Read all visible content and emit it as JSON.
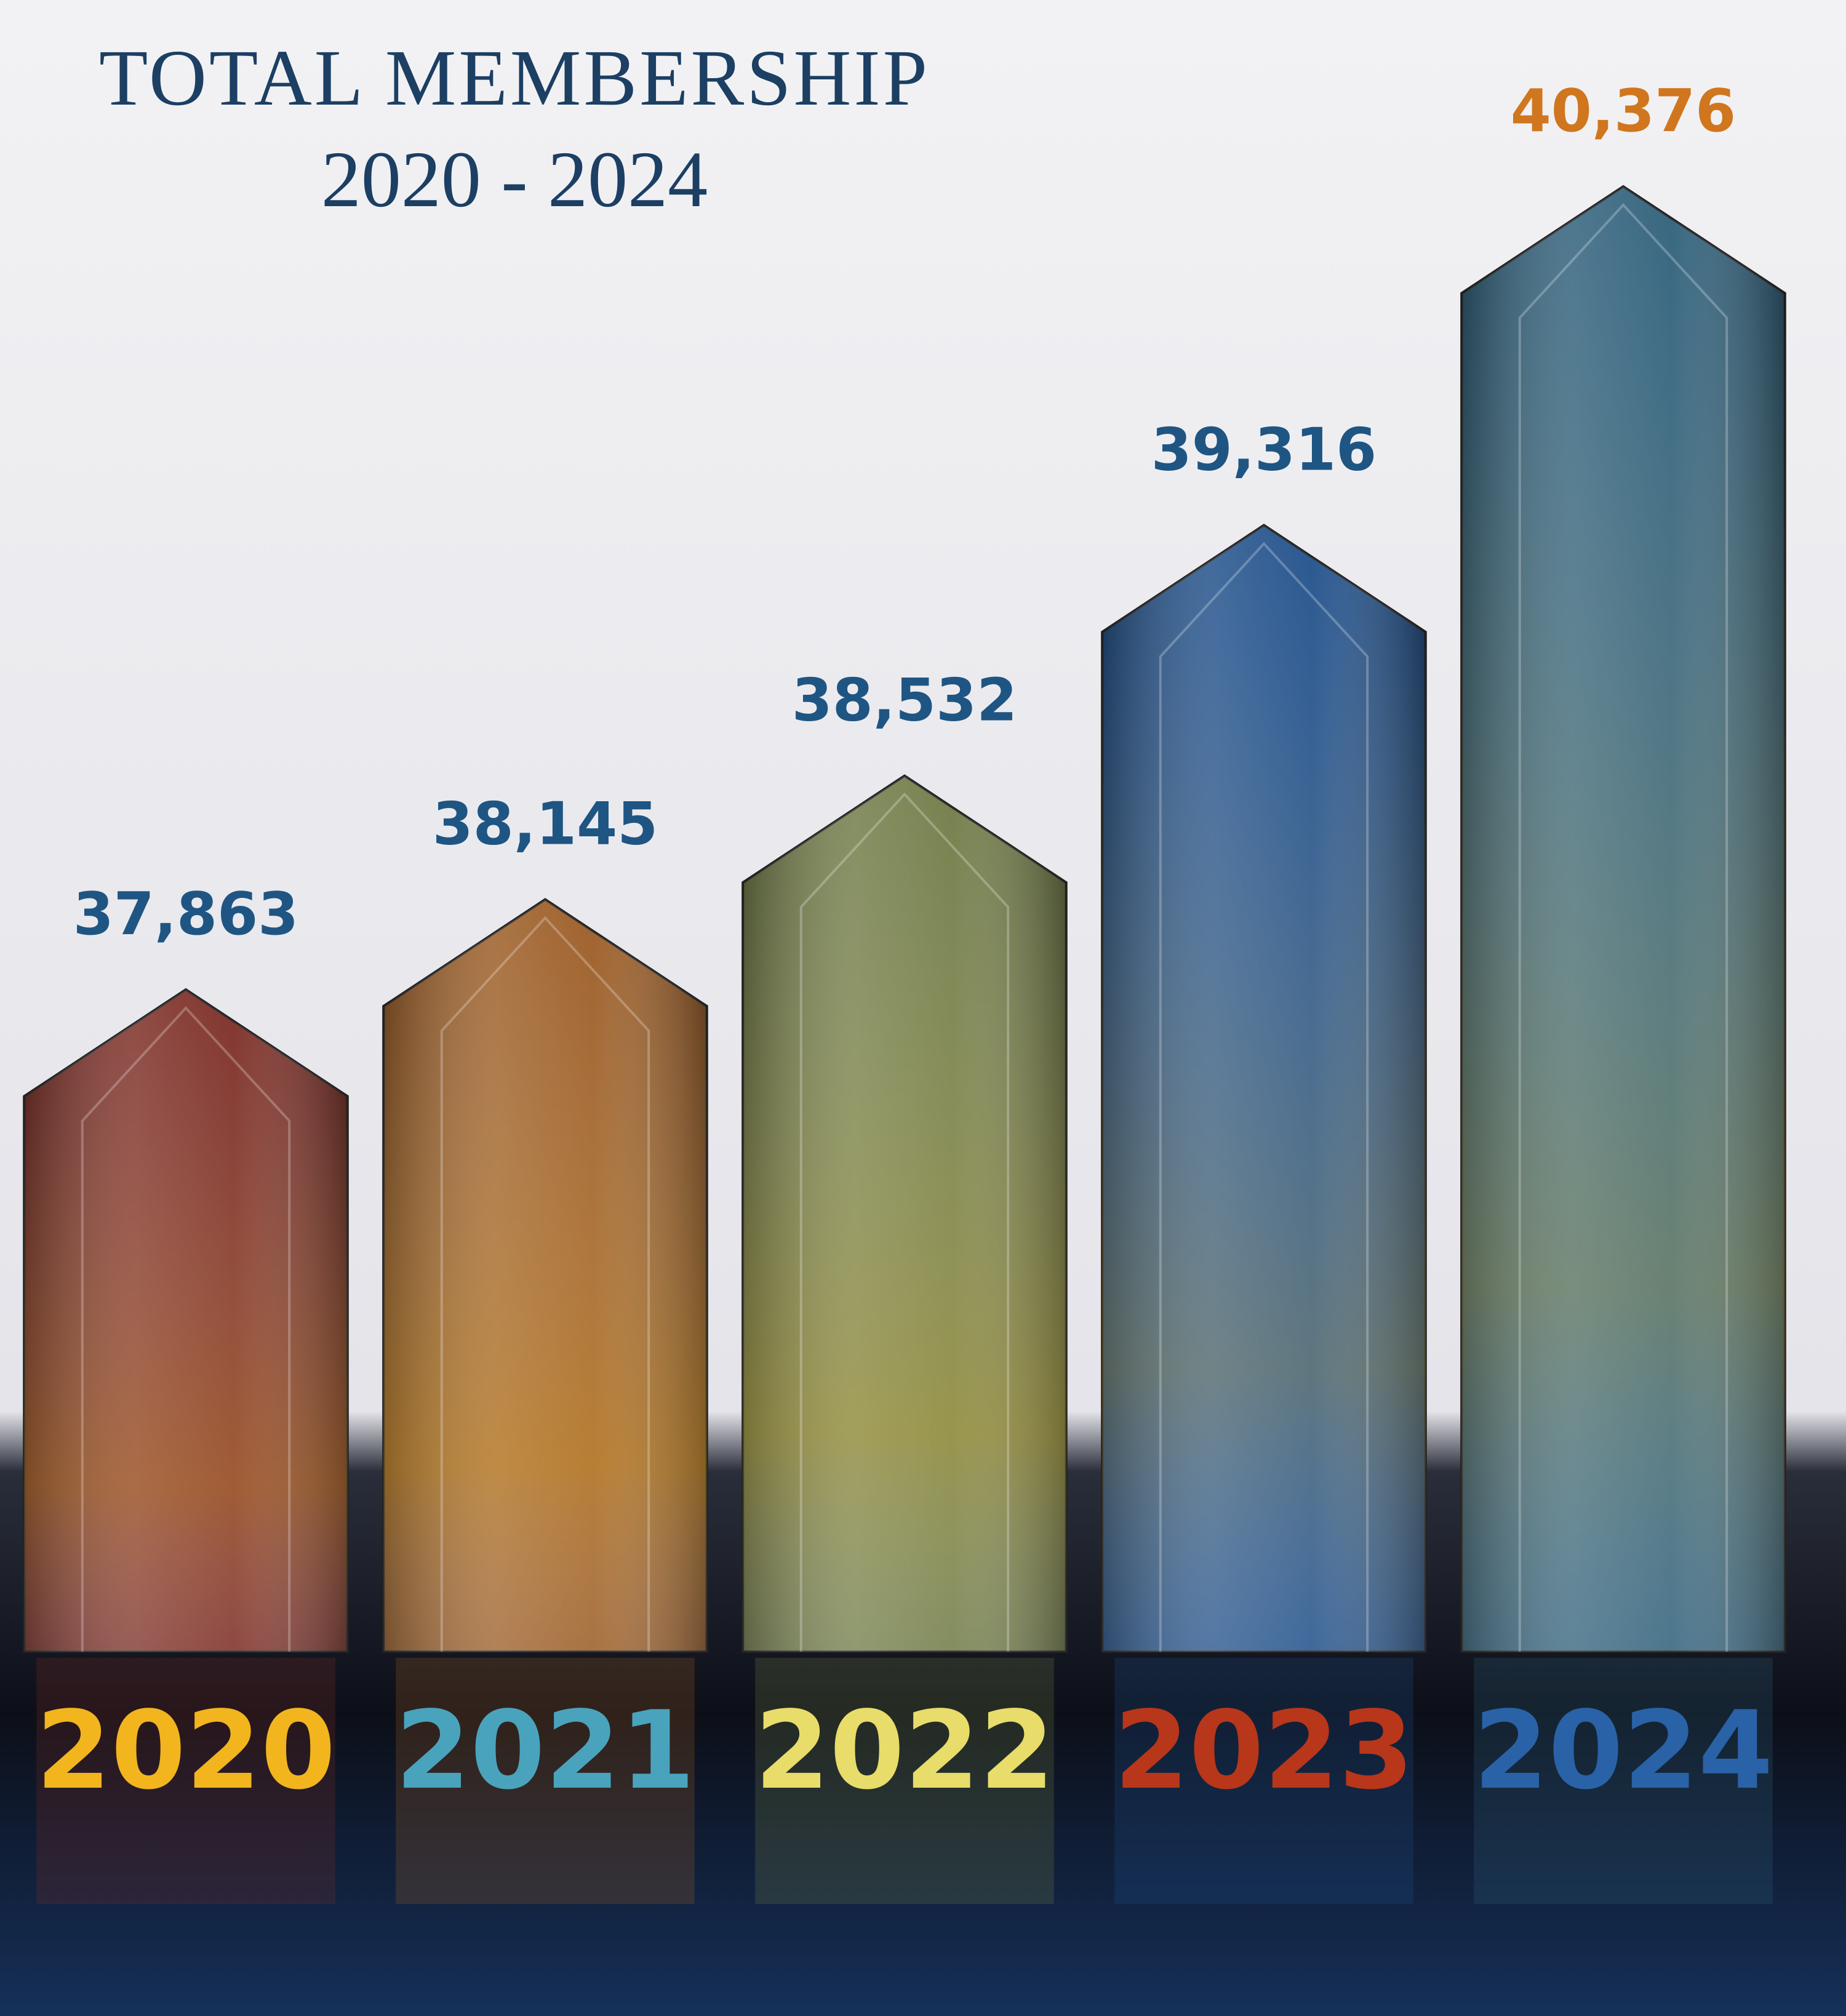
{
  "chart_data": {
    "type": "bar",
    "title": "TOTAL MEMBERSHIP",
    "subtitle": "2020 - 2024",
    "categories": [
      "2020",
      "2021",
      "2022",
      "2023",
      "2024"
    ],
    "values": [
      37863,
      38145,
      38532,
      39316,
      40376
    ],
    "value_labels": [
      "37,863",
      "38,145",
      "38,532",
      "39,316",
      "40,376"
    ],
    "colors": [
      "#7a2a22",
      "#9a5a22",
      "#6f7a45",
      "#1f4f8a",
      "#2e5f7a"
    ],
    "category_label_colors": [
      "#f2b51e",
      "#4aa3bd",
      "#e8dc6a",
      "#b8361a",
      "#2a62a8"
    ],
    "value_label_colors": [
      "#1f5583",
      "#1f5583",
      "#1f5583",
      "#1f5583",
      "#d0761e"
    ]
  }
}
